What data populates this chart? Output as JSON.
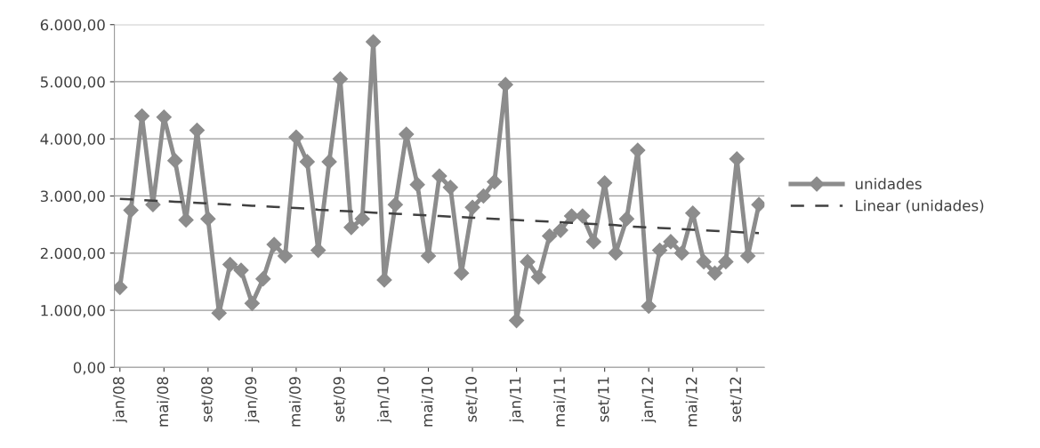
{
  "chart_data": {
    "type": "line",
    "categories": [
      "jan/08",
      null,
      null,
      null,
      "mai/08",
      null,
      null,
      null,
      "set/08",
      null,
      null,
      null,
      "jan/09",
      null,
      null,
      null,
      "mai/09",
      null,
      null,
      null,
      "set/09",
      null,
      null,
      null,
      "jan/10",
      null,
      null,
      null,
      "mai/10",
      null,
      null,
      null,
      "set/10",
      null,
      null,
      null,
      "jan/11",
      null,
      null,
      null,
      "mai/11",
      null,
      null,
      null,
      "set/11",
      null,
      null,
      null,
      "jan/12",
      null,
      null,
      null,
      "mai/12",
      null,
      null,
      null,
      "set/12",
      null,
      null
    ],
    "series": [
      {
        "name": "unidades",
        "color": "#8c8c8c",
        "marker": "diamond",
        "line_style": "solid",
        "values": [
          1400,
          2750,
          4400,
          2850,
          4380,
          3620,
          2580,
          4150,
          2600,
          950,
          1800,
          1700,
          1120,
          1550,
          2150,
          1950,
          4030,
          3600,
          2050,
          3600,
          5050,
          2450,
          2600,
          5700,
          1530,
          2850,
          4080,
          3200,
          1950,
          3350,
          3150,
          1650,
          2800,
          3000,
          3250,
          4950,
          820,
          1850,
          1580,
          2300,
          2400,
          2650,
          2650,
          2200,
          3230,
          2000,
          2600,
          3800,
          1070,
          2050,
          2200,
          2000,
          2700,
          1850,
          1650,
          1850,
          3650,
          1950,
          2850
        ]
      },
      {
        "name": "Linear (unidades)",
        "type": "line",
        "color": "#404040",
        "marker": "none",
        "line_style": "dashed",
        "values": [
          2950,
          2940,
          2930,
          2920,
          2910,
          2900,
          2890,
          2880,
          2870,
          2860,
          2850,
          2840,
          2830,
          2820,
          2810,
          2800,
          2790,
          2780,
          2760,
          2750,
          2740,
          2730,
          2720,
          2710,
          2700,
          2690,
          2680,
          2670,
          2660,
          2650,
          2640,
          2630,
          2620,
          2610,
          2600,
          2590,
          2580,
          2570,
          2560,
          2550,
          2540,
          2530,
          2520,
          2510,
          2500,
          2490,
          2470,
          2460,
          2450,
          2440,
          2430,
          2420,
          2410,
          2400,
          2390,
          2380,
          2370,
          2360,
          2350
        ]
      }
    ],
    "ylim": [
      0,
      6000
    ],
    "yticks": [
      {
        "value": 0,
        "label": "0,00"
      },
      {
        "value": 1000,
        "label": "1.000,00"
      },
      {
        "value": 2000,
        "label": "2.000,00"
      },
      {
        "value": 3000,
        "label": "3.000,00"
      },
      {
        "value": 4000,
        "label": "4.000,00"
      },
      {
        "value": 5000,
        "label": "5.000,00"
      },
      {
        "value": 6000,
        "label": "6.000,00"
      }
    ],
    "grid": "y",
    "legend": "right"
  }
}
